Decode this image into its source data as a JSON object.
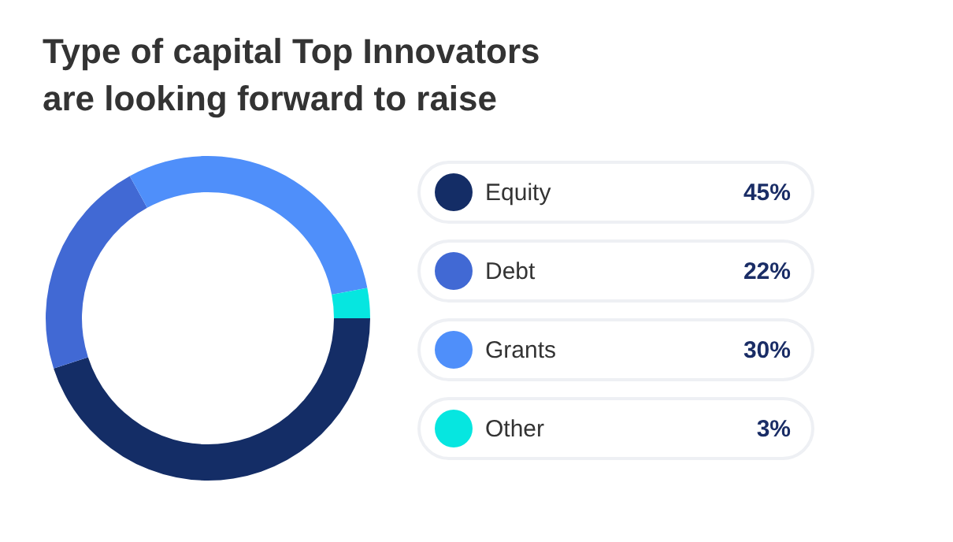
{
  "chart_data": {
    "type": "donut",
    "title": "Type of capital Top Innovators are looking forward to raise",
    "categories": [
      "Equity",
      "Debt",
      "Grants",
      "Other"
    ],
    "values": [
      45,
      22,
      30,
      3
    ],
    "colors": [
      "#142d66",
      "#4169d4",
      "#4f8ffa",
      "#06e6e0"
    ],
    "value_labels": [
      "45%",
      "22%",
      "30%",
      "3%"
    ],
    "legend": "right"
  }
}
